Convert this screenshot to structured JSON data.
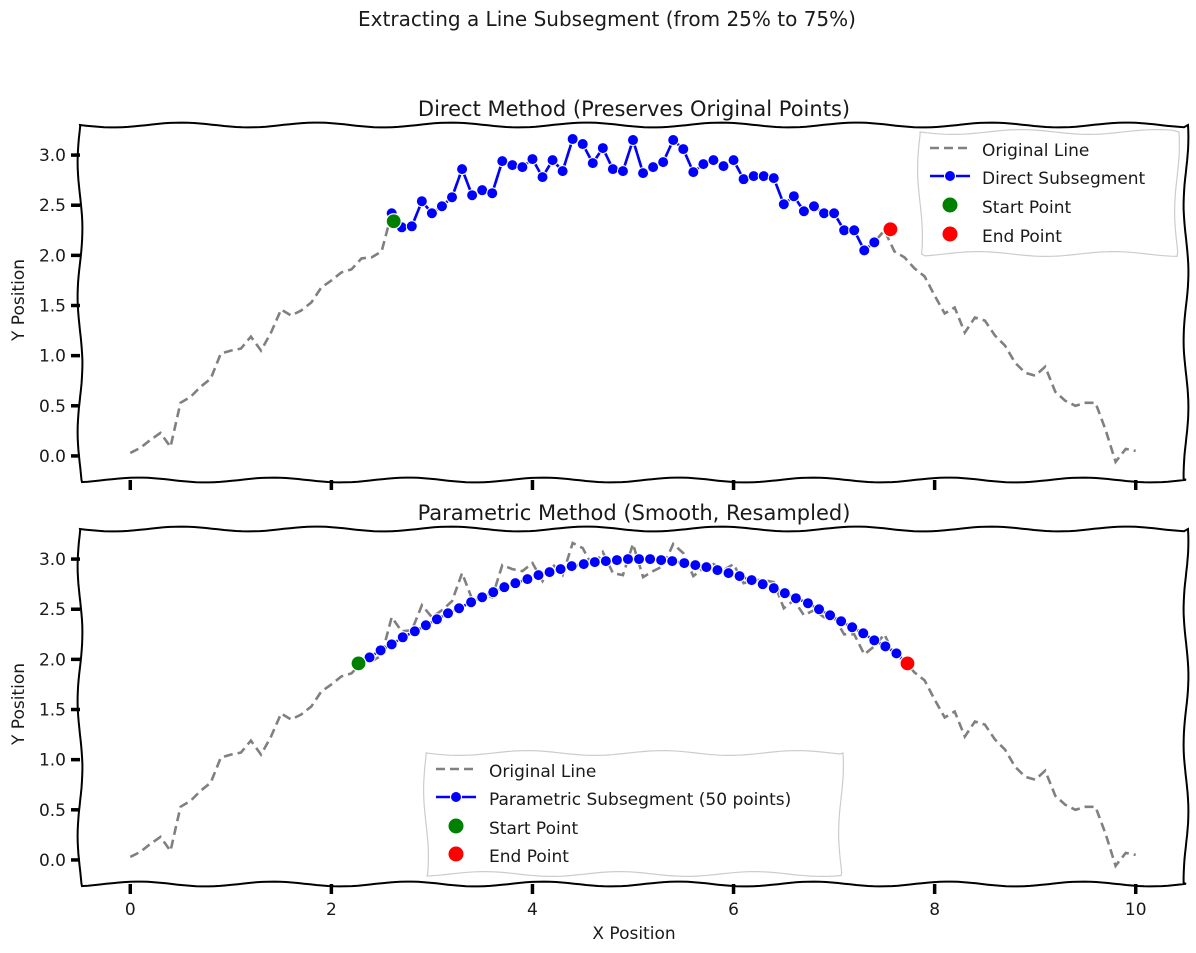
{
  "figure": {
    "suptitle": "Extracting a Line Subsegment (from 25% to 75%)"
  },
  "colors": {
    "original": "#808080",
    "subsegment": "#0000ff",
    "start": "#008000",
    "end": "#ff0000"
  },
  "chart_data": [
    {
      "type": "line",
      "title": "Direct Method (Preserves Original Points)",
      "xlabel": "",
      "ylabel": "Y Position",
      "xlim": [
        -0.5,
        10.5
      ],
      "ylim": [
        -0.24,
        3.3
      ],
      "xticks": [
        0,
        2,
        4,
        6,
        8,
        10
      ],
      "xtick_labels_visible": false,
      "yticks": [
        0.0,
        0.5,
        1.0,
        1.5,
        2.0,
        2.5,
        3.0
      ],
      "ytick_labels": [
        "0.0",
        "0.5",
        "1.0",
        "1.5",
        "2.0",
        "2.5",
        "3.0"
      ],
      "legend": {
        "position": "upper right",
        "entries": [
          "Original Line",
          "Direct Subsegment",
          "Start Point",
          "End Point"
        ]
      },
      "series": [
        {
          "name": "Original Line",
          "style": "dashed",
          "x": [
            0.0,
            0.1,
            0.2,
            0.3,
            0.4,
            0.5,
            0.6,
            0.7,
            0.8,
            0.9,
            1.0,
            1.1,
            1.2,
            1.3,
            1.4,
            1.5,
            1.6,
            1.7,
            1.8,
            1.9,
            2.0,
            2.1,
            2.2,
            2.3,
            2.4,
            2.5,
            2.6,
            2.7,
            2.8,
            2.9,
            3.0,
            3.1,
            3.2,
            3.3,
            3.4,
            3.5,
            3.6,
            3.7,
            3.8,
            3.9,
            4.0,
            4.1,
            4.2,
            4.3,
            4.4,
            4.5,
            4.6,
            4.7,
            4.8,
            4.9,
            5.0,
            5.1,
            5.2,
            5.3,
            5.4,
            5.5,
            5.6,
            5.7,
            5.8,
            5.9,
            6.0,
            6.1,
            6.2,
            6.3,
            6.4,
            6.5,
            6.6,
            6.7,
            6.8,
            6.9,
            7.0,
            7.1,
            7.2,
            7.3,
            7.4,
            7.5,
            7.6,
            7.7,
            7.8,
            7.9,
            8.0,
            8.1,
            8.2,
            8.3,
            8.4,
            8.5,
            8.6,
            8.7,
            8.8,
            8.9,
            9.0,
            9.1,
            9.2,
            9.3,
            9.4,
            9.5,
            9.6,
            9.7,
            9.8,
            9.9,
            10.0
          ],
          "y": [
            0.03,
            0.08,
            0.16,
            0.23,
            0.09,
            0.53,
            0.59,
            0.69,
            0.77,
            1.02,
            1.05,
            1.07,
            1.19,
            1.05,
            1.23,
            1.46,
            1.4,
            1.45,
            1.53,
            1.68,
            1.75,
            1.83,
            1.86,
            1.97,
            1.98,
            2.04,
            2.42,
            2.28,
            2.29,
            2.54,
            2.42,
            2.49,
            2.58,
            2.86,
            2.6,
            2.65,
            2.62,
            2.94,
            2.9,
            2.88,
            2.96,
            2.78,
            2.95,
            2.84,
            3.16,
            3.11,
            2.92,
            3.07,
            2.86,
            2.84,
            3.15,
            2.82,
            2.88,
            2.93,
            3.15,
            3.06,
            2.83,
            2.91,
            2.95,
            2.89,
            2.95,
            2.76,
            2.79,
            2.79,
            2.77,
            2.51,
            2.59,
            2.44,
            2.49,
            2.42,
            2.42,
            2.25,
            2.25,
            2.05,
            2.13,
            2.25,
            2.04,
            1.98,
            1.87,
            1.79,
            1.6,
            1.42,
            1.48,
            1.23,
            1.38,
            1.35,
            1.2,
            1.1,
            0.93,
            0.83,
            0.8,
            0.89,
            0.64,
            0.55,
            0.5,
            0.53,
            0.53,
            0.26,
            -0.06,
            0.07,
            0.05
          ]
        },
        {
          "name": "Direct Subsegment",
          "style": "solid-markers",
          "x": [
            2.6,
            2.7,
            2.8,
            2.9,
            3.0,
            3.1,
            3.2,
            3.3,
            3.4,
            3.5,
            3.6,
            3.7,
            3.8,
            3.9,
            4.0,
            4.1,
            4.2,
            4.3,
            4.4,
            4.5,
            4.6,
            4.7,
            4.8,
            4.9,
            5.0,
            5.1,
            5.2,
            5.3,
            5.4,
            5.5,
            5.6,
            5.7,
            5.8,
            5.9,
            6.0,
            6.1,
            6.2,
            6.3,
            6.4,
            6.5,
            6.6,
            6.7,
            6.8,
            6.9,
            7.0,
            7.1,
            7.2,
            7.3,
            7.4
          ],
          "y": [
            2.42,
            2.28,
            2.29,
            2.54,
            2.42,
            2.49,
            2.58,
            2.86,
            2.6,
            2.65,
            2.62,
            2.94,
            2.9,
            2.88,
            2.96,
            2.78,
            2.95,
            2.84,
            3.16,
            3.11,
            2.92,
            3.07,
            2.86,
            2.84,
            3.15,
            2.82,
            2.88,
            2.93,
            3.15,
            3.06,
            2.83,
            2.91,
            2.95,
            2.89,
            2.95,
            2.76,
            2.79,
            2.79,
            2.77,
            2.51,
            2.59,
            2.44,
            2.49,
            2.42,
            2.42,
            2.25,
            2.25,
            2.05,
            2.13
          ]
        }
      ],
      "start_point": {
        "x": 2.62,
        "y": 2.34
      },
      "end_point": {
        "x": 7.56,
        "y": 2.26
      }
    },
    {
      "type": "line",
      "title": "Parametric Method (Smooth, Resampled)",
      "xlabel": "X Position",
      "ylabel": "Y Position",
      "xlim": [
        -0.5,
        10.5
      ],
      "ylim": [
        -0.24,
        3.3
      ],
      "xticks": [
        0,
        2,
        4,
        6,
        8,
        10
      ],
      "xtick_labels": [
        "0",
        "2",
        "4",
        "6",
        "8",
        "10"
      ],
      "yticks": [
        0.0,
        0.5,
        1.0,
        1.5,
        2.0,
        2.5,
        3.0
      ],
      "ytick_labels": [
        "0.0",
        "0.5",
        "1.0",
        "1.5",
        "2.0",
        "2.5",
        "3.0"
      ],
      "legend": {
        "position": "lower center",
        "entries": [
          "Original Line",
          "Parametric Subsegment (50 points)",
          "Start Point",
          "End Point"
        ]
      },
      "series": [
        {
          "name": "Original Line",
          "style": "dashed",
          "x": [
            0.0,
            0.1,
            0.2,
            0.3,
            0.4,
            0.5,
            0.6,
            0.7,
            0.8,
            0.9,
            1.0,
            1.1,
            1.2,
            1.3,
            1.4,
            1.5,
            1.6,
            1.7,
            1.8,
            1.9,
            2.0,
            2.1,
            2.2,
            2.3,
            2.4,
            2.5,
            2.6,
            2.7,
            2.8,
            2.9,
            3.0,
            3.1,
            3.2,
            3.3,
            3.4,
            3.5,
            3.6,
            3.7,
            3.8,
            3.9,
            4.0,
            4.1,
            4.2,
            4.3,
            4.4,
            4.5,
            4.6,
            4.7,
            4.8,
            4.9,
            5.0,
            5.1,
            5.2,
            5.3,
            5.4,
            5.5,
            5.6,
            5.7,
            5.8,
            5.9,
            6.0,
            6.1,
            6.2,
            6.3,
            6.4,
            6.5,
            6.6,
            6.7,
            6.8,
            6.9,
            7.0,
            7.1,
            7.2,
            7.3,
            7.4,
            7.5,
            7.6,
            7.7,
            7.8,
            7.9,
            8.0,
            8.1,
            8.2,
            8.3,
            8.4,
            8.5,
            8.6,
            8.7,
            8.8,
            8.9,
            9.0,
            9.1,
            9.2,
            9.3,
            9.4,
            9.5,
            9.6,
            9.7,
            9.8,
            9.9,
            10.0
          ],
          "y": [
            0.03,
            0.08,
            0.16,
            0.23,
            0.09,
            0.53,
            0.59,
            0.69,
            0.77,
            1.02,
            1.05,
            1.07,
            1.19,
            1.05,
            1.23,
            1.46,
            1.4,
            1.45,
            1.53,
            1.68,
            1.75,
            1.83,
            1.86,
            1.97,
            1.98,
            2.04,
            2.42,
            2.28,
            2.29,
            2.54,
            2.42,
            2.49,
            2.58,
            2.86,
            2.6,
            2.65,
            2.62,
            2.94,
            2.9,
            2.88,
            2.96,
            2.78,
            2.95,
            2.84,
            3.16,
            3.11,
            2.92,
            3.07,
            2.86,
            2.84,
            3.15,
            2.82,
            2.88,
            2.93,
            3.15,
            3.06,
            2.83,
            2.91,
            2.95,
            2.89,
            2.95,
            2.76,
            2.79,
            2.79,
            2.77,
            2.51,
            2.59,
            2.44,
            2.49,
            2.42,
            2.42,
            2.25,
            2.25,
            2.05,
            2.13,
            2.25,
            2.04,
            1.98,
            1.87,
            1.79,
            1.6,
            1.42,
            1.48,
            1.23,
            1.38,
            1.35,
            1.2,
            1.1,
            0.93,
            0.83,
            0.8,
            0.89,
            0.64,
            0.55,
            0.5,
            0.53,
            0.53,
            0.26,
            -0.06,
            0.07,
            0.05
          ]
        },
        {
          "name": "Parametric Subsegment (50 points)",
          "style": "solid-markers",
          "x": [
            2.27,
            2.38,
            2.49,
            2.6,
            2.71,
            2.83,
            2.94,
            3.05,
            3.16,
            3.27,
            3.39,
            3.5,
            3.61,
            3.72,
            3.83,
            3.95,
            4.06,
            4.17,
            4.28,
            4.39,
            4.51,
            4.62,
            4.73,
            4.84,
            4.95,
            5.06,
            5.17,
            5.28,
            5.39,
            5.51,
            5.62,
            5.73,
            5.84,
            5.95,
            6.06,
            6.18,
            6.29,
            6.4,
            6.51,
            6.62,
            6.74,
            6.85,
            6.96,
            7.07,
            7.18,
            7.29,
            7.4,
            7.51,
            7.62,
            7.73
          ],
          "y": [
            1.96,
            2.02,
            2.09,
            2.15,
            2.22,
            2.28,
            2.34,
            2.4,
            2.46,
            2.51,
            2.57,
            2.62,
            2.67,
            2.72,
            2.76,
            2.8,
            2.84,
            2.87,
            2.9,
            2.93,
            2.95,
            2.97,
            2.98,
            2.99,
            3.0,
            3.0,
            3.0,
            2.99,
            2.98,
            2.96,
            2.94,
            2.92,
            2.89,
            2.86,
            2.83,
            2.79,
            2.75,
            2.71,
            2.66,
            2.61,
            2.56,
            2.5,
            2.44,
            2.38,
            2.32,
            2.26,
            2.19,
            2.13,
            2.06,
            1.96
          ]
        }
      ],
      "start_point": {
        "x": 2.27,
        "y": 1.96
      },
      "end_point": {
        "x": 7.73,
        "y": 1.96
      }
    }
  ]
}
